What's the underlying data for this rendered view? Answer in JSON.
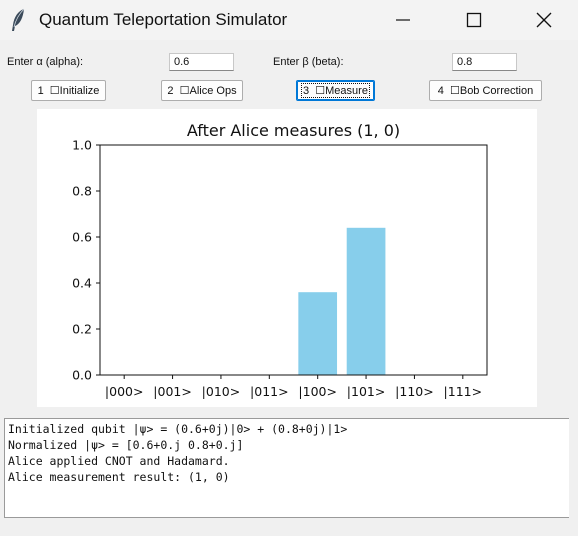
{
  "window": {
    "title": "Quantum Teleportation Simulator",
    "icon": "feather-icon"
  },
  "controls": {
    "alpha_label": "Enter α (alpha):",
    "alpha_value": "0.6",
    "beta_label": "Enter β (beta):",
    "beta_value": "0.8",
    "buttons": [
      {
        "label": "1  ☐Initialize"
      },
      {
        "label": "2  ☐Alice Ops"
      },
      {
        "label": "3  ☐Measure",
        "focused": true
      },
      {
        "label": "4  ☐Bob Correction"
      }
    ]
  },
  "chart_data": {
    "type": "bar",
    "title": "After Alice measures (1, 0)",
    "categories": [
      "|000>",
      "|001>",
      "|010>",
      "|011>",
      "|100>",
      "|101>",
      "|110>",
      "|111>"
    ],
    "values": [
      0,
      0,
      0,
      0,
      0.36,
      0.64,
      0,
      0
    ],
    "ylim": [
      0,
      1.0
    ],
    "yticks": [
      "0.0",
      "0.2",
      "0.4",
      "0.6",
      "0.8",
      "1.0"
    ],
    "bar_color": "#87ceeb",
    "xlabel": "",
    "ylabel": "",
    "grid": false
  },
  "log": {
    "lines": [
      "Initialized qubit |ψ> = (0.6+0j)|0> + (0.8+0j)|1>",
      "Normalized |ψ> = [0.6+0.j 0.8+0.j]",
      "Alice applied CNOT and Hadamard.",
      "Alice measurement result: (1, 0)"
    ]
  }
}
